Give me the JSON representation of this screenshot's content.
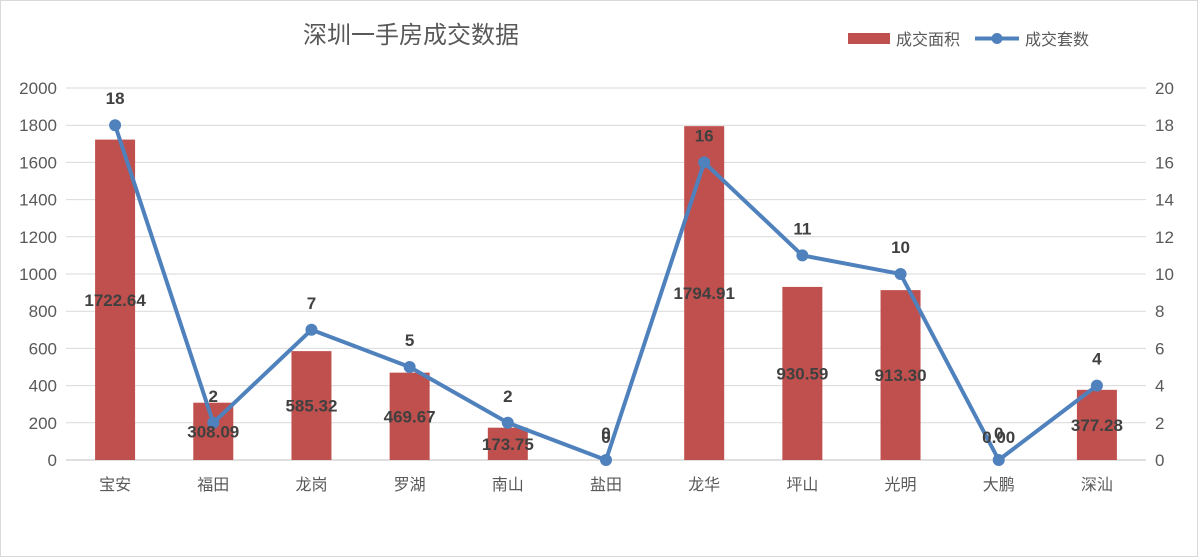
{
  "chart_data": {
    "type": "bar",
    "title": "深圳一手房成交数据",
    "categories": [
      "宝安",
      "福田",
      "龙岗",
      "罗湖",
      "南山",
      "盐田",
      "龙华",
      "坪山",
      "光明",
      "大鹏",
      "深汕"
    ],
    "series": [
      {
        "name": "成交面积",
        "type": "bar",
        "axis": "left",
        "color": "#C0504D",
        "values": [
          1722.64,
          308.09,
          585.32,
          469.67,
          173.75,
          0,
          1794.91,
          930.59,
          913.3,
          0.0,
          377.28
        ],
        "labels": [
          "1722.64",
          "308.09",
          "585.32",
          "469.67",
          "173.75",
          "0",
          "1794.91",
          "930.59",
          "913.30",
          "0.00",
          "377.28"
        ]
      },
      {
        "name": "成交套数",
        "type": "line",
        "axis": "right",
        "color": "#4F81BD",
        "values": [
          18,
          2,
          7,
          5,
          2,
          0,
          16,
          11,
          10,
          0,
          4
        ],
        "labels": [
          "18",
          "2",
          "7",
          "5",
          "2",
          "0",
          "16",
          "11",
          "10",
          "0",
          "4"
        ]
      }
    ],
    "ylim_left": [
      0,
      2000
    ],
    "ylim_right": [
      0,
      20
    ],
    "yticks_left": [
      "0",
      "200",
      "400",
      "600",
      "800",
      "1000",
      "1200",
      "1400",
      "1600",
      "1800",
      "2000"
    ],
    "yticks_right": [
      "0",
      "2",
      "4",
      "6",
      "8",
      "10",
      "12",
      "14",
      "16",
      "18",
      "20"
    ],
    "grid": true,
    "legend_position": "top-right"
  }
}
